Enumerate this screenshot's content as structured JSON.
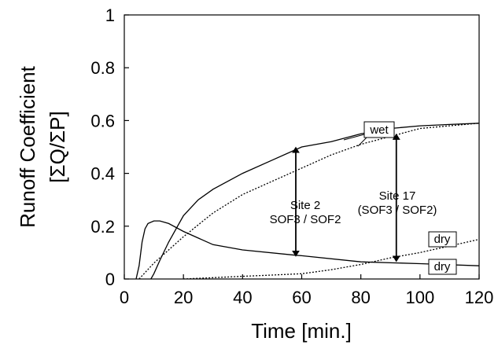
{
  "chart_data": {
    "type": "line",
    "xlabel": "Time [min.]",
    "ylabel_line1": "Runoff Coefficient",
    "ylabel_line2": "[ΣQ/ΣP]",
    "xlim": [
      0,
      120
    ],
    "ylim": [
      0,
      1
    ],
    "xticks": [
      0,
      20,
      40,
      60,
      80,
      100,
      120
    ],
    "yticks": [
      0,
      0.2,
      0.4,
      0.6,
      0.8,
      1
    ],
    "ytick_labels": [
      "0",
      "0.2",
      "0.4",
      "0.6",
      "0.8",
      "1"
    ],
    "grid": false,
    "series": [
      {
        "style": "solid",
        "x": [
          4,
          5,
          6,
          7,
          8,
          10,
          12,
          15,
          20,
          30,
          40,
          58,
          60,
          80,
          100,
          120
        ],
        "y": [
          0.0,
          0.05,
          0.14,
          0.19,
          0.21,
          0.22,
          0.22,
          0.21,
          0.18,
          0.13,
          0.11,
          0.09,
          0.088,
          0.065,
          0.058,
          0.05
        ]
      },
      {
        "style": "solid",
        "x": [
          9,
          10,
          12,
          15,
          20,
          25,
          30,
          40,
          50,
          58,
          60,
          70,
          80,
          90,
          100,
          110,
          120
        ],
        "y": [
          0.0,
          0.02,
          0.07,
          0.14,
          0.24,
          0.3,
          0.34,
          0.4,
          0.45,
          0.49,
          0.5,
          0.52,
          0.55,
          0.57,
          0.58,
          0.585,
          0.59
        ]
      },
      {
        "style": "dotted",
        "x": [
          5,
          10,
          20,
          30,
          40,
          50,
          60,
          70,
          80,
          90,
          100,
          110,
          120
        ],
        "y": [
          0.0,
          0.06,
          0.16,
          0.25,
          0.32,
          0.37,
          0.42,
          0.47,
          0.51,
          0.54,
          0.57,
          0.58,
          0.59
        ]
      },
      {
        "style": "dotted",
        "x": [
          20,
          30,
          40,
          50,
          60,
          70,
          80,
          90,
          100,
          110,
          120
        ],
        "y": [
          0.0,
          0.005,
          0.01,
          0.015,
          0.02,
          0.035,
          0.055,
          0.08,
          0.1,
          0.125,
          0.15
        ]
      }
    ],
    "annotations": {
      "wet_label": "wet",
      "dry_label_1": "dry",
      "dry_label_2": "dry",
      "site2_line1": "Site 2",
      "site2_line2": "SOF3 / SOF2",
      "site17_line1": "Site 17",
      "site17_line2": "(SOF3 / SOF2)",
      "site2_arrow": {
        "x": 58,
        "y_top": 0.495,
        "y_bottom": 0.09
      },
      "site17_arrow": {
        "x": 92,
        "y_top": 0.545,
        "y_bottom": 0.07
      }
    }
  }
}
